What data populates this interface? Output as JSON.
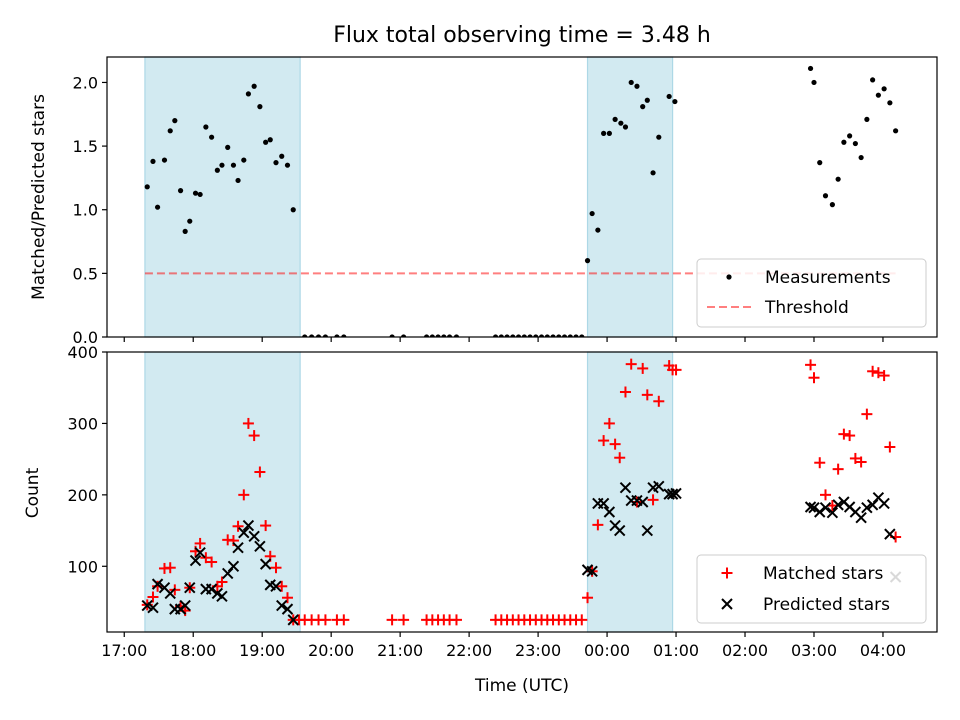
{
  "colors": {
    "band": "#add8e6",
    "measurement": "#000000",
    "threshold": "#ff0000",
    "matched": "#ff0000",
    "predicted": "#000000"
  },
  "chart_data": [
    {
      "type": "scatter",
      "title": "Flux total observing time = 3.48 h",
      "ylabel": "Matched/Predicted stars",
      "ylim": [
        0,
        2.2
      ],
      "yticks": [
        0.0,
        0.5,
        1.0,
        1.5,
        2.0
      ],
      "ytick_labels": [
        "0.0",
        "0.5",
        "1.0",
        "1.5",
        "2.0"
      ],
      "threshold": 0.5,
      "bands": [
        [
          "17:18",
          "19:33"
        ],
        [
          "23:43",
          "00:57"
        ]
      ],
      "legend": {
        "position": "lower-right",
        "entries": [
          "Measurements",
          "Threshold"
        ]
      },
      "series": [
        {
          "name": "Measurements",
          "points": [
            [
              "17:20",
              1.18
            ],
            [
              "17:25",
              1.38
            ],
            [
              "17:29",
              1.02
            ],
            [
              "17:35",
              1.39
            ],
            [
              "17:40",
              1.62
            ],
            [
              "17:44",
              1.7
            ],
            [
              "17:49",
              1.15
            ],
            [
              "17:53",
              0.83
            ],
            [
              "17:57",
              0.91
            ],
            [
              "18:02",
              1.13
            ],
            [
              "18:06",
              1.12
            ],
            [
              "18:11",
              1.65
            ],
            [
              "18:16",
              1.57
            ],
            [
              "18:21",
              1.31
            ],
            [
              "18:25",
              1.35
            ],
            [
              "18:30",
              1.49
            ],
            [
              "18:35",
              1.35
            ],
            [
              "18:39",
              1.23
            ],
            [
              "18:44",
              1.39
            ],
            [
              "18:48",
              1.91
            ],
            [
              "18:53",
              1.97
            ],
            [
              "18:58",
              1.81
            ],
            [
              "19:03",
              1.53
            ],
            [
              "19:07",
              1.55
            ],
            [
              "19:12",
              1.37
            ],
            [
              "19:17",
              1.42
            ],
            [
              "19:22",
              1.35
            ],
            [
              "19:27",
              1.0
            ],
            [
              "19:37",
              0
            ],
            [
              "19:43",
              0
            ],
            [
              "19:49",
              0
            ],
            [
              "19:55",
              0
            ],
            [
              "20:05",
              0
            ],
            [
              "20:11",
              0
            ],
            [
              "20:53",
              0
            ],
            [
              "21:03",
              0
            ],
            [
              "21:23",
              0
            ],
            [
              "21:28",
              0
            ],
            [
              "21:33",
              0
            ],
            [
              "21:38",
              0
            ],
            [
              "21:43",
              0
            ],
            [
              "21:49",
              0
            ],
            [
              "22:23",
              0
            ],
            [
              "22:28",
              0
            ],
            [
              "22:33",
              0
            ],
            [
              "22:38",
              0
            ],
            [
              "22:43",
              0
            ],
            [
              "22:48",
              0
            ],
            [
              "22:53",
              0
            ],
            [
              "22:58",
              0
            ],
            [
              "23:03",
              0
            ],
            [
              "23:08",
              0
            ],
            [
              "23:13",
              0
            ],
            [
              "23:18",
              0
            ],
            [
              "23:23",
              0
            ],
            [
              "23:28",
              0
            ],
            [
              "23:33",
              0
            ],
            [
              "23:38",
              0
            ],
            [
              "23:43",
              0.6
            ],
            [
              "23:47",
              0.97
            ],
            [
              "23:52",
              0.84
            ],
            [
              "23:57",
              1.6
            ],
            [
              "00:02",
              1.6
            ],
            [
              "00:07",
              1.71
            ],
            [
              "00:12",
              1.68
            ],
            [
              "00:16",
              1.65
            ],
            [
              "00:21",
              2.0
            ],
            [
              "00:26",
              1.97
            ],
            [
              "00:31",
              1.81
            ],
            [
              "00:35",
              1.86
            ],
            [
              "00:40",
              1.29
            ],
            [
              "00:45",
              1.57
            ],
            [
              "00:54",
              1.89
            ],
            [
              "00:59",
              1.85
            ],
            [
              "02:57",
              2.11
            ],
            [
              "03:00",
              2.0
            ],
            [
              "03:05",
              1.37
            ],
            [
              "03:10",
              1.11
            ],
            [
              "03:16",
              1.04
            ],
            [
              "03:21",
              1.24
            ],
            [
              "03:26",
              1.53
            ],
            [
              "03:31",
              1.58
            ],
            [
              "03:36",
              1.52
            ],
            [
              "03:41",
              1.41
            ],
            [
              "03:46",
              1.71
            ],
            [
              "03:51",
              2.02
            ],
            [
              "03:56",
              1.9
            ],
            [
              "04:01",
              1.95
            ],
            [
              "04:06",
              1.84
            ],
            [
              "04:11",
              1.62
            ]
          ]
        },
        {
          "name": "Threshold",
          "value": 0.5,
          "x_range": [
            "17:18",
            "04:11"
          ]
        }
      ]
    },
    {
      "type": "scatter",
      "xlabel": "Time (UTC)",
      "ylabel": "Count",
      "ylim": [
        8,
        400
      ],
      "yticks": [
        100,
        200,
        300,
        400
      ],
      "xticks": [
        "17:00",
        "18:00",
        "19:00",
        "20:00",
        "21:00",
        "22:00",
        "23:00",
        "00:00",
        "01:00",
        "02:00",
        "03:00",
        "04:00"
      ],
      "bands": [
        [
          "17:18",
          "19:33"
        ],
        [
          "23:43",
          "00:57"
        ]
      ],
      "legend": {
        "position": "lower-right",
        "entries": [
          "Matched stars",
          "Predicted stars"
        ]
      },
      "series": [
        {
          "name": "Matched stars",
          "points": [
            [
              "17:20",
              46
            ],
            [
              "17:25",
              57
            ],
            [
              "17:29",
              72
            ],
            [
              "17:35",
              97
            ],
            [
              "17:40",
              98
            ],
            [
              "17:44",
              67
            ],
            [
              "17:49",
              44
            ],
            [
              "17:53",
              38
            ],
            [
              "17:57",
              70
            ],
            [
              "18:02",
              121
            ],
            [
              "18:06",
              132
            ],
            [
              "18:11",
              112
            ],
            [
              "18:16",
              106
            ],
            [
              "18:21",
              72
            ],
            [
              "18:25",
              78
            ],
            [
              "18:30",
              137
            ],
            [
              "18:35",
              136
            ],
            [
              "18:39",
              156
            ],
            [
              "18:44",
              200
            ],
            [
              "18:48",
              300
            ],
            [
              "18:53",
              283
            ],
            [
              "18:58",
              232
            ],
            [
              "19:03",
              157
            ],
            [
              "19:07",
              114
            ],
            [
              "19:12",
              98
            ],
            [
              "19:17",
              72
            ],
            [
              "19:22",
              56
            ],
            [
              "19:27",
              25
            ],
            [
              "19:32",
              25
            ],
            [
              "19:37",
              25
            ],
            [
              "19:43",
              25
            ],
            [
              "19:49",
              25
            ],
            [
              "19:55",
              25
            ],
            [
              "20:05",
              25
            ],
            [
              "20:11",
              25
            ],
            [
              "20:53",
              25
            ],
            [
              "21:03",
              25
            ],
            [
              "21:23",
              25
            ],
            [
              "21:28",
              25
            ],
            [
              "21:33",
              25
            ],
            [
              "21:38",
              25
            ],
            [
              "21:43",
              25
            ],
            [
              "21:49",
              25
            ],
            [
              "22:23",
              25
            ],
            [
              "22:28",
              25
            ],
            [
              "22:33",
              25
            ],
            [
              "22:38",
              25
            ],
            [
              "22:43",
              25
            ],
            [
              "22:48",
              25
            ],
            [
              "22:53",
              25
            ],
            [
              "22:58",
              25
            ],
            [
              "23:03",
              25
            ],
            [
              "23:08",
              25
            ],
            [
              "23:13",
              25
            ],
            [
              "23:18",
              25
            ],
            [
              "23:23",
              25
            ],
            [
              "23:28",
              25
            ],
            [
              "23:33",
              25
            ],
            [
              "23:38",
              25
            ],
            [
              "23:43",
              56
            ],
            [
              "23:47",
              93
            ],
            [
              "23:52",
              158
            ],
            [
              "23:57",
              276
            ],
            [
              "00:02",
              300
            ],
            [
              "00:07",
              271
            ],
            [
              "00:11",
              252
            ],
            [
              "00:16",
              344
            ],
            [
              "00:21",
              383
            ],
            [
              "00:26",
              190
            ],
            [
              "00:31",
              377
            ],
            [
              "00:35",
              340
            ],
            [
              "00:40",
              193
            ],
            [
              "00:45",
              331
            ],
            [
              "00:54",
              381
            ],
            [
              "00:57",
              375
            ],
            [
              "01:00",
              375
            ],
            [
              "02:57",
              382
            ],
            [
              "03:00",
              364
            ],
            [
              "03:05",
              245
            ],
            [
              "03:10",
              200
            ],
            [
              "03:16",
              185
            ],
            [
              "03:21",
              236
            ],
            [
              "03:26",
              285
            ],
            [
              "03:31",
              283
            ],
            [
              "03:36",
              251
            ],
            [
              "03:41",
              246
            ],
            [
              "03:46",
              313
            ],
            [
              "03:51",
              373
            ],
            [
              "03:56",
              371
            ],
            [
              "04:01",
              367
            ],
            [
              "04:06",
              267
            ],
            [
              "04:11",
              141
            ]
          ]
        },
        {
          "name": "Predicted stars",
          "points": [
            [
              "17:20",
              45
            ],
            [
              "17:25",
              42
            ],
            [
              "17:29",
              75
            ],
            [
              "17:35",
              70
            ],
            [
              "17:40",
              62
            ],
            [
              "17:44",
              40
            ],
            [
              "17:49",
              40
            ],
            [
              "17:53",
              45
            ],
            [
              "17:57",
              70
            ],
            [
              "18:02",
              108
            ],
            [
              "18:06",
              119
            ],
            [
              "18:11",
              68
            ],
            [
              "18:16",
              68
            ],
            [
              "18:21",
              62
            ],
            [
              "18:25",
              58
            ],
            [
              "18:30",
              90
            ],
            [
              "18:35",
              100
            ],
            [
              "18:39",
              126
            ],
            [
              "18:44",
              147
            ],
            [
              "18:48",
              157
            ],
            [
              "18:53",
              142
            ],
            [
              "18:58",
              128
            ],
            [
              "19:03",
              103
            ],
            [
              "19:07",
              74
            ],
            [
              "19:12",
              72
            ],
            [
              "19:17",
              45
            ],
            [
              "19:22",
              40
            ],
            [
              "19:27",
              25
            ],
            [
              "23:43",
              95
            ],
            [
              "23:47",
              93
            ],
            [
              "23:52",
              188
            ],
            [
              "23:57",
              188
            ],
            [
              "00:02",
              176
            ],
            [
              "00:07",
              157
            ],
            [
              "00:11",
              150
            ],
            [
              "00:16",
              210
            ],
            [
              "00:21",
              192
            ],
            [
              "00:26",
              192
            ],
            [
              "00:31",
              190
            ],
            [
              "00:35",
              150
            ],
            [
              "00:40",
              210
            ],
            [
              "00:45",
              212
            ],
            [
              "00:54",
              201
            ],
            [
              "00:57",
              201
            ],
            [
              "01:00",
              202
            ],
            [
              "02:57",
              183
            ],
            [
              "03:00",
              182
            ],
            [
              "03:05",
              176
            ],
            [
              "03:10",
              182
            ],
            [
              "03:16",
              175
            ],
            [
              "03:21",
              186
            ],
            [
              "03:26",
              190
            ],
            [
              "03:31",
              183
            ],
            [
              "03:36",
              176
            ],
            [
              "03:41",
              168
            ],
            [
              "03:46",
              182
            ],
            [
              "03:51",
              186
            ],
            [
              "03:56",
              196
            ],
            [
              "04:01",
              188
            ],
            [
              "04:06",
              145
            ],
            [
              "04:11",
              85
            ]
          ]
        }
      ]
    }
  ]
}
